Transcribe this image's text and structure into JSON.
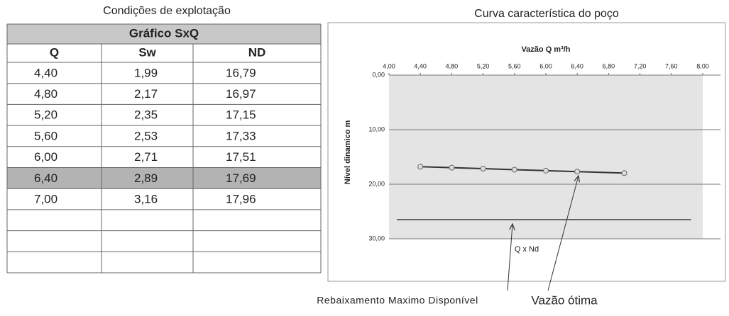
{
  "table": {
    "caption": "Condições de explotação",
    "title": "Gráfico SxQ",
    "columns": [
      "Q",
      "Sw",
      "ND"
    ],
    "rows": [
      [
        "4,40",
        "1,99",
        "16,79"
      ],
      [
        "4,80",
        "2,17",
        "16,97"
      ],
      [
        "5,20",
        "2,35",
        "17,15"
      ],
      [
        "5,60",
        "2,53",
        "17,33"
      ],
      [
        "6,00",
        "2,71",
        "17,51"
      ],
      [
        "6,40",
        "2,89",
        "17,69"
      ],
      [
        "7,00",
        "3,16",
        "17,96"
      ]
    ],
    "highlight_row": 5
  },
  "chart_data": {
    "type": "line",
    "heading": "Curva característica do poço",
    "title": "Q x Nd",
    "x_label": "Vazão Q m³/h",
    "y_label": "Nível dinamico m",
    "x": [
      4.4,
      4.8,
      5.2,
      5.6,
      6.0,
      6.4,
      7.0
    ],
    "series": [
      {
        "name": "ND",
        "color": "#333333",
        "values": [
          16.79,
          16.97,
          17.15,
          17.33,
          17.51,
          17.69,
          17.96
        ]
      }
    ],
    "xlim": [
      4,
      8
    ],
    "xticks": [
      {
        "value": 4,
        "label": "4,00"
      },
      {
        "value": 4.4,
        "label": "4,40"
      },
      {
        "value": 4.8,
        "label": "4,80"
      },
      {
        "value": 5.2,
        "label": "5,20"
      },
      {
        "value": 5.6,
        "label": "5,60"
      },
      {
        "value": 6,
        "label": "6,00"
      },
      {
        "value": 6.4,
        "label": "6,40"
      },
      {
        "value": 6.8,
        "label": "6,80"
      },
      {
        "value": 7.2,
        "label": "7,20"
      },
      {
        "value": 7.6,
        "label": "7,60"
      },
      {
        "value": 8,
        "label": "8,00"
      }
    ],
    "ylim": [
      0,
      30
    ],
    "y_inverted": true,
    "yticks": [
      {
        "value": 0,
        "label": "0,00"
      },
      {
        "value": 10,
        "label": "10,00"
      },
      {
        "value": 20,
        "label": "20,00"
      },
      {
        "value": 30,
        "label": "30,00"
      }
    ],
    "grid": true,
    "reference_line": {
      "label": "Rebaixamento Maximo Disponível",
      "value": 26.5,
      "x": [
        4.1,
        7.85
      ],
      "color": "#666666"
    },
    "annotation": "Vazão ótima"
  }
}
